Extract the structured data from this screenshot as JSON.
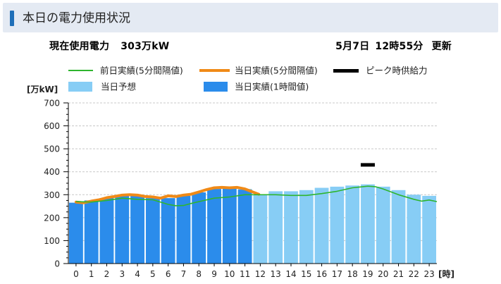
{
  "header": {
    "title": "本日の電力使用状況"
  },
  "status": {
    "current_label": "現在使用電力",
    "current_value": "303万kW",
    "date": "5月7日",
    "time": "12時55分",
    "update_label": "更新"
  },
  "chart_data": {
    "type": "bar",
    "ylabel": "[万kW]",
    "xlabel": "[時]",
    "ylim": [
      0,
      700
    ],
    "yticks": [
      0,
      100,
      200,
      300,
      400,
      500,
      600,
      700
    ],
    "categories": [
      "0",
      "1",
      "2",
      "3",
      "4",
      "5",
      "6",
      "7",
      "8",
      "9",
      "10",
      "11",
      "12",
      "13",
      "14",
      "15",
      "16",
      "17",
      "18",
      "19",
      "20",
      "21",
      "22",
      "23"
    ],
    "grid": true,
    "legend_position": "top",
    "series": [
      {
        "name": "当日予想",
        "kind": "bar",
        "color": "#87cdf5",
        "values": [
          265,
          275,
          285,
          290,
          290,
          285,
          285,
          285,
          305,
          325,
          325,
          325,
          300,
          315,
          315,
          320,
          330,
          335,
          340,
          345,
          335,
          320,
          300,
          295
        ]
      },
      {
        "name": "当日実績(1時間値)",
        "kind": "bar",
        "color": "#2b8ceb",
        "values": [
          265,
          275,
          285,
          295,
          295,
          285,
          285,
          295,
          310,
          325,
          328,
          322,
          null,
          null,
          null,
          null,
          null,
          null,
          null,
          null,
          null,
          null,
          null,
          null
        ]
      },
      {
        "name": "前日実績(5分間隔値)",
        "kind": "line",
        "color": "#2fb52f",
        "x": [
          0,
          1,
          2,
          3,
          4,
          5,
          6,
          6.5,
          7,
          7.5,
          8,
          9,
          10,
          11,
          12,
          13,
          14,
          15,
          16,
          17,
          18,
          19,
          19.5,
          20,
          21,
          22,
          22.5,
          23,
          23.5
        ],
        "y": [
          270,
          268,
          275,
          285,
          280,
          278,
          258,
          252,
          253,
          262,
          270,
          285,
          290,
          300,
          300,
          300,
          297,
          297,
          305,
          315,
          330,
          337,
          335,
          325,
          300,
          280,
          272,
          277,
          270
        ]
      },
      {
        "name": "当日実績(5分間隔値)",
        "kind": "line",
        "color": "#f08a17",
        "x": [
          0,
          0.5,
          1,
          1.5,
          2,
          2.5,
          3,
          3.5,
          4,
          4.5,
          5,
          5.5,
          6,
          6.5,
          7,
          7.5,
          8,
          8.5,
          9,
          9.5,
          10,
          10.5,
          11,
          11.5,
          11.9
        ],
        "y": [
          268,
          265,
          272,
          278,
          287,
          292,
          298,
          300,
          298,
          292,
          290,
          285,
          295,
          292,
          298,
          302,
          312,
          322,
          330,
          332,
          330,
          332,
          325,
          312,
          302
        ]
      },
      {
        "name": "ピーク時供給力",
        "kind": "marker",
        "color": "#000000",
        "x": 19,
        "y": 430
      }
    ]
  }
}
